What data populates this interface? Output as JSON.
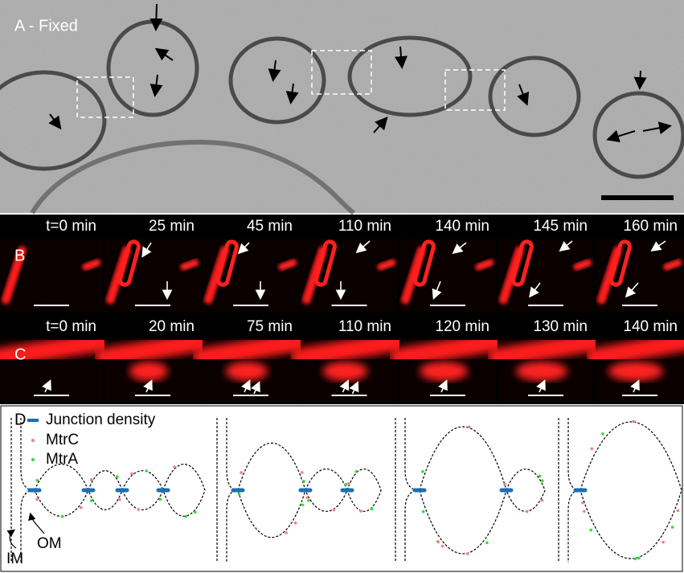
{
  "panels": {
    "a": {
      "label": "A - Fixed"
    },
    "b": {
      "label": "B",
      "times": [
        "t=0 min",
        "25 min",
        "45 min",
        "110 min",
        "140 min",
        "145 min",
        "160 min"
      ]
    },
    "c": {
      "label": "C",
      "times": [
        "t=0 min",
        "20 min",
        "75 min",
        "110 min",
        "120 min",
        "130 min",
        "140 min"
      ]
    },
    "d": {
      "label": "D",
      "legend": [
        "Junction density",
        "MtrC",
        "MtrA"
      ],
      "membranes": [
        "IM",
        "OM"
      ]
    }
  }
}
